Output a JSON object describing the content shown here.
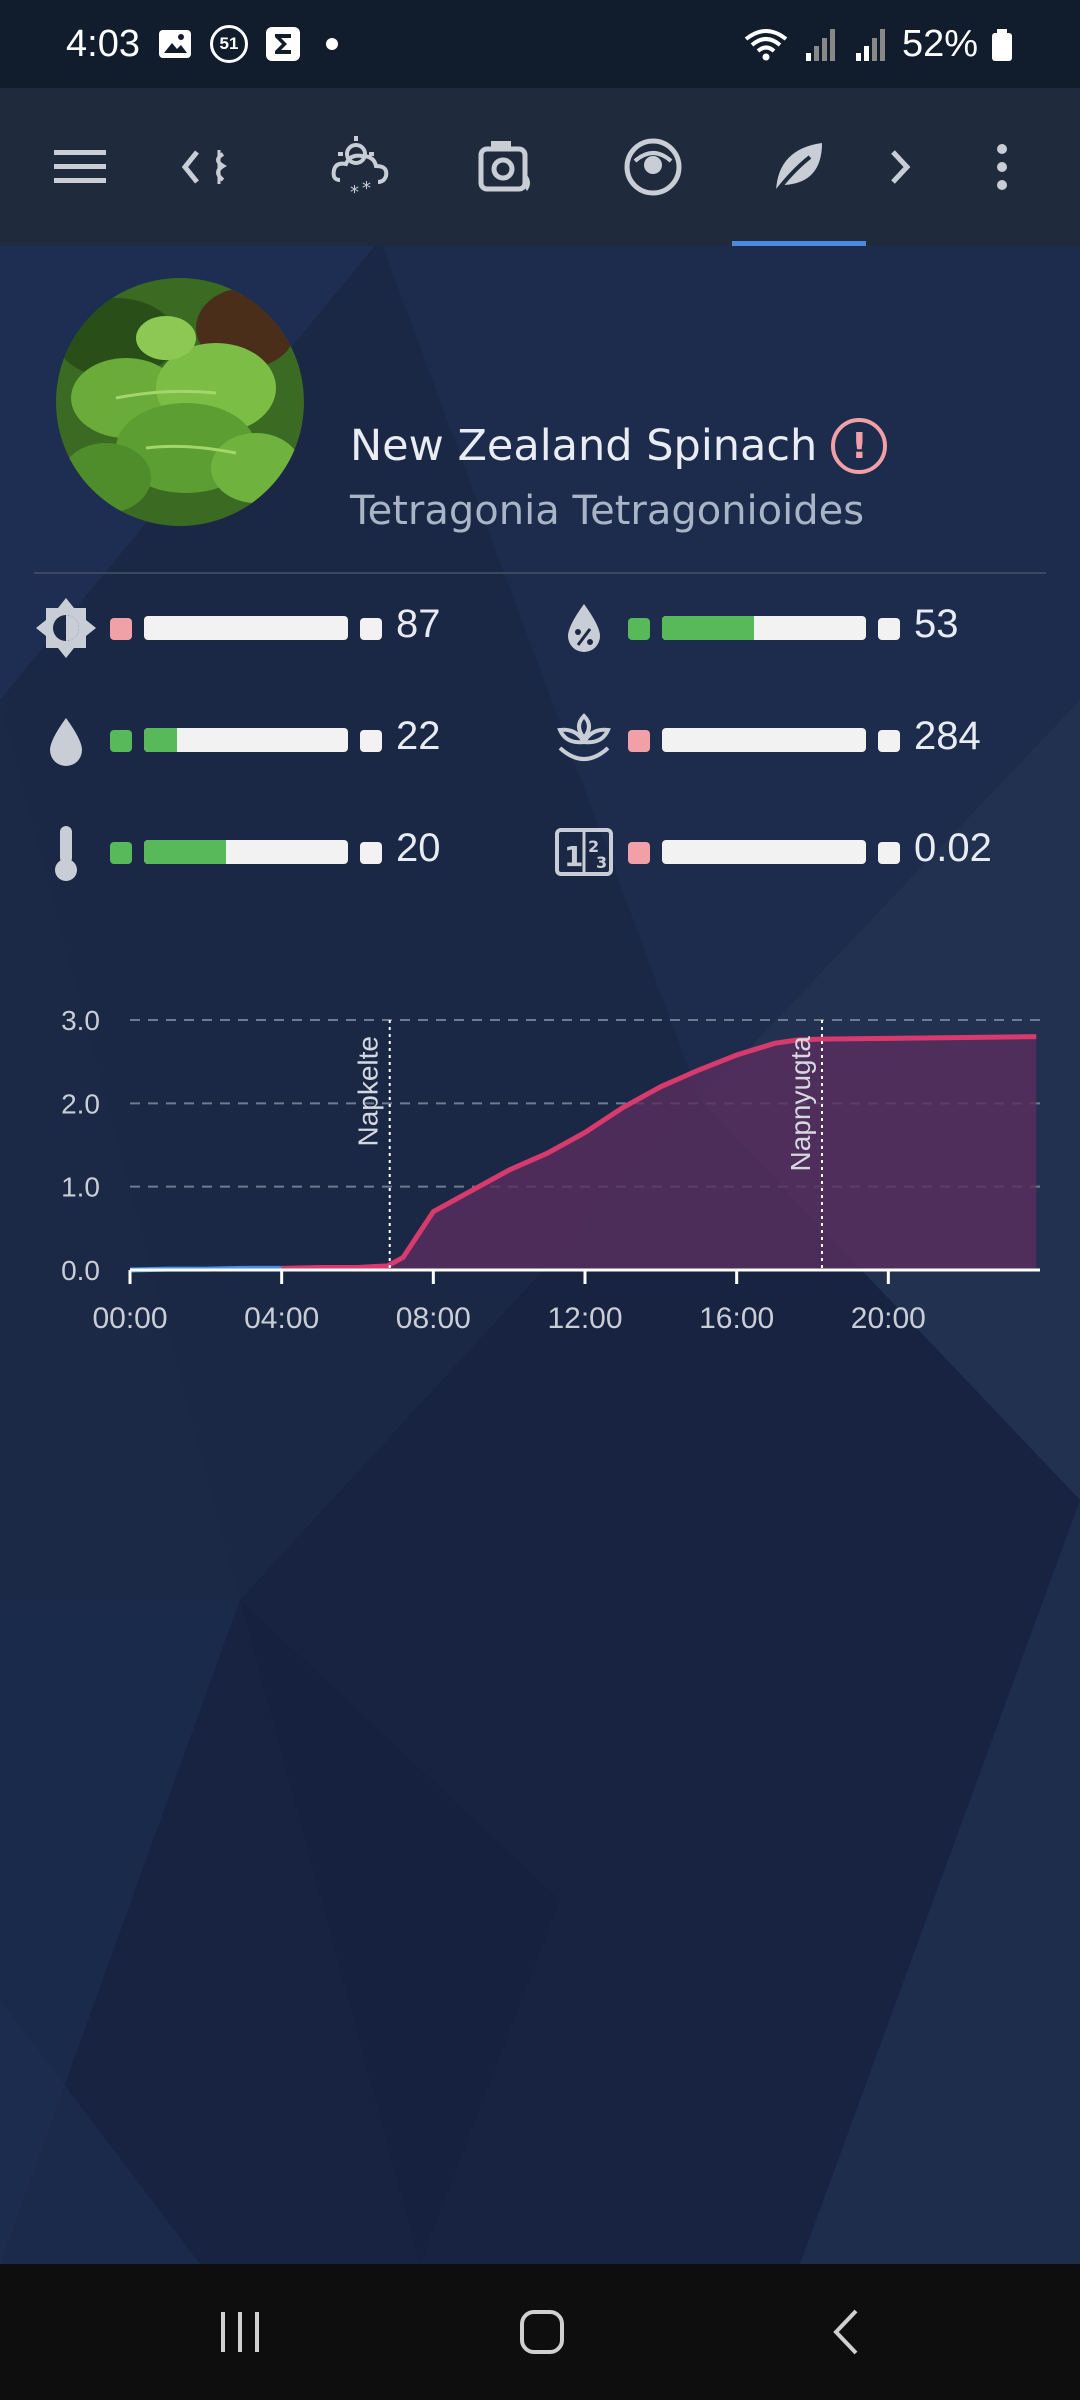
{
  "status_bar": {
    "time": "4:03",
    "notification_badge": "51",
    "battery": "52%"
  },
  "toolbar": {
    "icons": [
      "menu-icon",
      "chevron-left-icon",
      "weather-icon",
      "camera-icon",
      "vacuum-icon",
      "leaf-icon",
      "chevron-right-icon",
      "more-icon"
    ],
    "active_tab": "leaf-icon",
    "accent": "#4a8ae0"
  },
  "plant": {
    "name": "New Zealand Spinach",
    "latin_name": "Tetragonia Tetragonioides"
  },
  "sensors": [
    {
      "id": "illuminance",
      "icon": "brightness-icon",
      "status": "bad",
      "level": 0,
      "value": "87"
    },
    {
      "id": "humidity",
      "icon": "humidity-icon",
      "status": "good",
      "level": 0.45,
      "value": "53"
    },
    {
      "id": "moisture",
      "icon": "water-drop-icon",
      "status": "good",
      "level": 0.16,
      "value": "22"
    },
    {
      "id": "conductivity",
      "icon": "sprout-icon",
      "status": "bad",
      "level": 0,
      "value": "284"
    },
    {
      "id": "temperature",
      "icon": "thermometer-icon",
      "status": "good",
      "level": 0.4,
      "value": "20"
    },
    {
      "id": "dli",
      "icon": "counter-icon",
      "status": "bad",
      "level": 0,
      "value": "0.02"
    }
  ],
  "colors": {
    "good": "#57b95a",
    "bad": "#f0a0a6",
    "chart_line": "#d83a6e",
    "chart_fill": "#5a2e5e",
    "chart_line_early": "#4a90e2"
  },
  "chart_data": {
    "type": "area",
    "x": [
      0,
      1,
      2,
      3,
      4,
      5,
      6,
      6.8,
      7.2,
      8,
      9,
      10,
      11,
      12,
      13,
      14,
      15,
      16,
      17,
      17.6,
      18.2,
      20,
      22,
      23.9
    ],
    "y": [
      0.0,
      0.01,
      0.01,
      0.02,
      0.02,
      0.03,
      0.03,
      0.05,
      0.15,
      0.7,
      0.95,
      1.2,
      1.4,
      1.65,
      1.95,
      2.2,
      2.4,
      2.58,
      2.72,
      2.76,
      2.77,
      2.78,
      2.79,
      2.8
    ],
    "yticks": [
      "0.0",
      "1.0",
      "2.0",
      "3.0"
    ],
    "ylim": [
      0,
      3
    ],
    "xticks": [
      "00:00",
      "04:00",
      "08:00",
      "12:00",
      "16:00",
      "20:00"
    ],
    "xlim": [
      0,
      24
    ],
    "annotations": [
      {
        "label": "Napkelte",
        "x": 6.85
      },
      {
        "label": "Napnyugta",
        "x": 18.25
      }
    ],
    "grid": true
  }
}
